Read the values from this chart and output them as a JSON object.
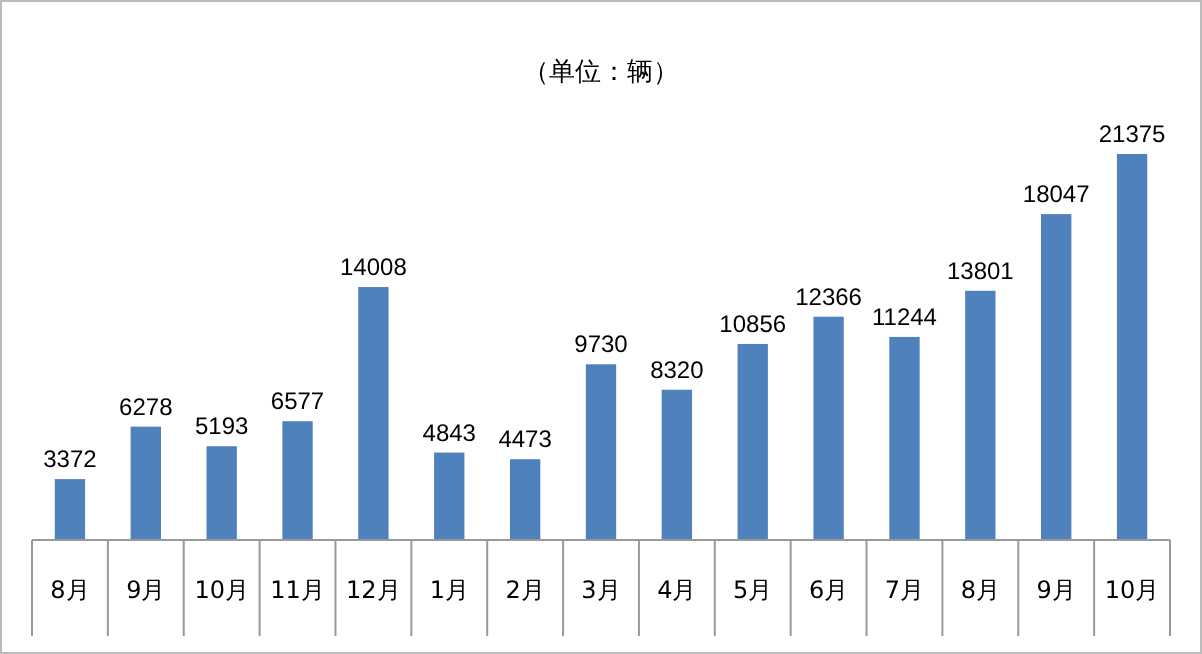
{
  "chart_data": {
    "type": "bar",
    "subtitle": "（单位：辆）",
    "categories": [
      "8月",
      "9月",
      "10月",
      "11月",
      "12月",
      "1月",
      "2月",
      "3月",
      "4月",
      "5月",
      "6月",
      "7月",
      "8月",
      "9月",
      "10月"
    ],
    "values": [
      3372,
      6278,
      5193,
      6577,
      14008,
      4843,
      4473,
      9730,
      8320,
      10856,
      12366,
      11244,
      13801,
      18047,
      21375
    ],
    "color": "#4f81bd",
    "data_labels": true
  }
}
